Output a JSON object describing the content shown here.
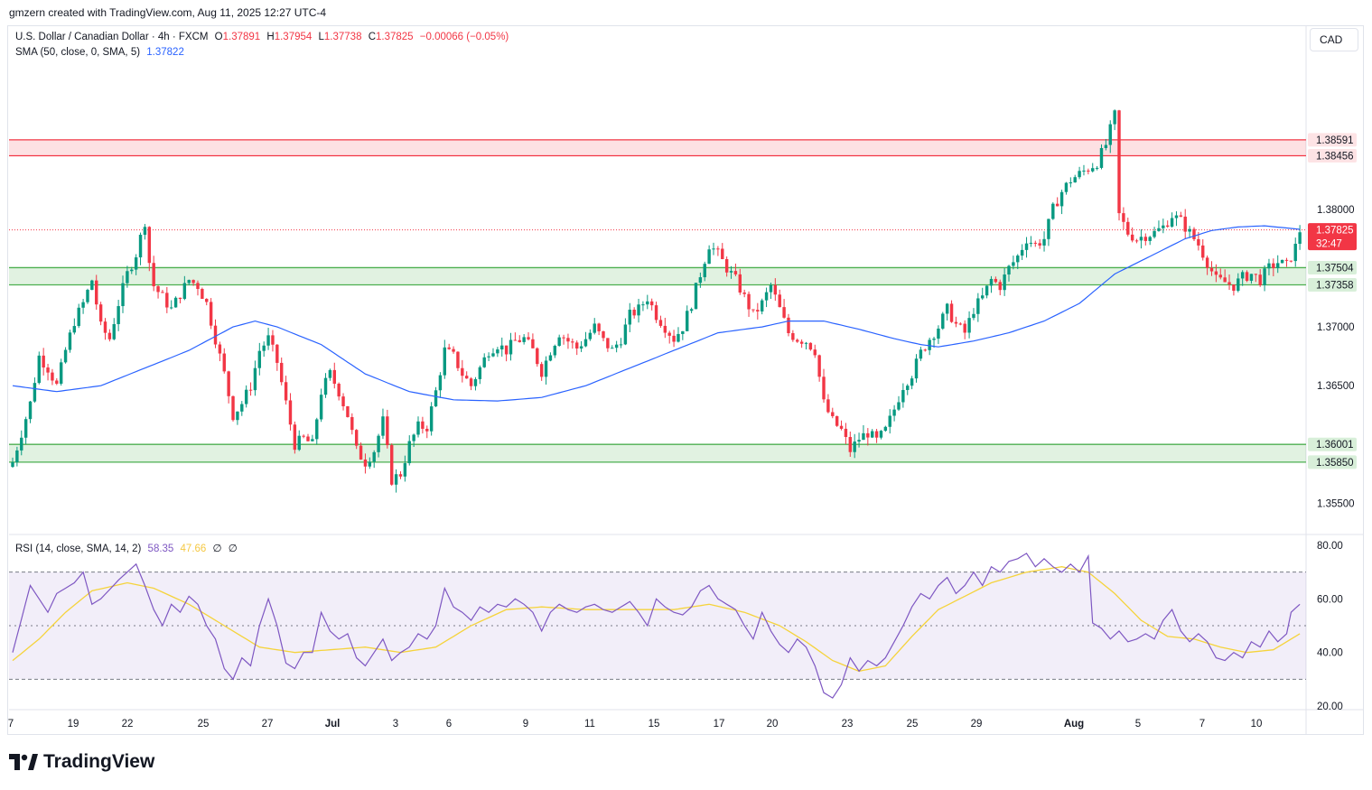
{
  "header": {
    "created_by": "gmzern created with TradingView.com, Aug 11, 2025 12:27 UTC-4"
  },
  "legend": {
    "symbol": "U.S. Dollar / Canadian Dollar · 4h · FXCM",
    "o_label": "O",
    "o_value": "1.37891",
    "h_label": "H",
    "h_value": "1.37954",
    "l_label": "L",
    "l_value": "1.37738",
    "c_label": "C",
    "c_value": "1.37825",
    "change": "−0.00066 (−0.05%)",
    "sma_label": "SMA (50, close, 0, SMA, 5)",
    "sma_value": "1.37822",
    "rsi_label": "RSI (14, close, SMA, 14, 2)",
    "rsi_value": "58.35",
    "rsi_ma_value": "47.66",
    "rsi_extra1": "∅",
    "rsi_extra2": "∅"
  },
  "currency_button": "CAD",
  "logo_text": "TradingView",
  "colors": {
    "up": "#089981",
    "down": "#f23645",
    "sma": "#2962ff",
    "rsi": "#7e57c2",
    "rsi_ma": "#f5d33b",
    "resistance_zone": "#f23645",
    "support_zone": "#4caf50"
  },
  "chart_data": {
    "type": "candlestick",
    "title": "U.S. Dollar / Canadian Dollar · 4h · FXCM",
    "ylim": [
      1.3525,
      1.3955
    ],
    "y_ticks": [
      "1.35500",
      "1.36500",
      "1.37000",
      "1.38000"
    ],
    "x_tick_labels": [
      "7",
      "19",
      "22",
      "25",
      "27",
      "Jul",
      "3",
      "6",
      "9",
      "11",
      "15",
      "17",
      "20",
      "23",
      "25",
      "29",
      "Aug",
      "5",
      "7",
      "10"
    ],
    "price_labels": {
      "resistance_top": "1.38591",
      "resistance_bottom": "1.38456",
      "current_price": "1.37825",
      "countdown": "32:47",
      "support1_top": "1.37504",
      "support1_bottom": "1.37358",
      "support2_top": "1.36001",
      "support2_bottom": "1.35850"
    },
    "zones": [
      {
        "name": "resistance",
        "low": 1.38456,
        "high": 1.38591
      },
      {
        "name": "support-upper",
        "low": 1.37358,
        "high": 1.37504
      },
      {
        "name": "support-lower",
        "low": 1.3585,
        "high": 1.36001
      }
    ],
    "current_price": 1.37825,
    "close_path": [
      [
        0,
        1.3585
      ],
      [
        4,
        1.3635
      ],
      [
        6,
        1.3675
      ],
      [
        8,
        1.3665
      ],
      [
        10,
        1.365
      ],
      [
        12,
        1.368
      ],
      [
        14,
        1.3705
      ],
      [
        16,
        1.372
      ],
      [
        18,
        1.374
      ],
      [
        20,
        1.37
      ],
      [
        22,
        1.369
      ],
      [
        24,
        1.372
      ],
      [
        26,
        1.3745
      ],
      [
        28,
        1.3762
      ],
      [
        30,
        1.379
      ],
      [
        31,
        1.3755
      ],
      [
        32,
        1.3735
      ],
      [
        34,
        1.3725
      ],
      [
        36,
        1.3715
      ],
      [
        38,
        1.3728
      ],
      [
        40,
        1.374
      ],
      [
        42,
        1.3735
      ],
      [
        44,
        1.372
      ],
      [
        46,
        1.369
      ],
      [
        48,
        1.366
      ],
      [
        50,
        1.3625
      ],
      [
        52,
        1.3635
      ],
      [
        54,
        1.365
      ],
      [
        56,
        1.368
      ],
      [
        58,
        1.369
      ],
      [
        60,
        1.367
      ],
      [
        62,
        1.3635
      ],
      [
        64,
        1.36
      ],
      [
        66,
        1.3605
      ],
      [
        68,
        1.36
      ],
      [
        70,
        1.3645
      ],
      [
        72,
        1.366
      ],
      [
        74,
        1.3645
      ],
      [
        76,
        1.3625
      ],
      [
        78,
        1.3595
      ],
      [
        80,
        1.3585
      ],
      [
        82,
        1.3595
      ],
      [
        84,
        1.362
      ],
      [
        86,
        1.357
      ],
      [
        88,
        1.3575
      ],
      [
        90,
        1.36
      ],
      [
        92,
        1.3615
      ],
      [
        94,
        1.3615
      ],
      [
        96,
        1.3645
      ],
      [
        98,
        1.368
      ],
      [
        100,
        1.3675
      ],
      [
        102,
        1.366
      ],
      [
        104,
        1.365
      ],
      [
        106,
        1.3665
      ],
      [
        108,
        1.368
      ],
      [
        110,
        1.3685
      ],
      [
        112,
        1.368
      ],
      [
        114,
        1.3688
      ],
      [
        116,
        1.369
      ],
      [
        118,
        1.368
      ],
      [
        120,
        1.3662
      ],
      [
        122,
        1.368
      ],
      [
        124,
        1.3695
      ],
      [
        126,
        1.3688
      ],
      [
        128,
        1.3682
      ],
      [
        130,
        1.369
      ],
      [
        132,
        1.37
      ],
      [
        134,
        1.3688
      ],
      [
        136,
        1.368
      ],
      [
        138,
        1.369
      ],
      [
        140,
        1.371
      ],
      [
        142,
        1.3715
      ],
      [
        144,
        1.3725
      ],
      [
        146,
        1.371
      ],
      [
        148,
        1.37
      ],
      [
        150,
        1.369
      ],
      [
        152,
        1.37
      ],
      [
        154,
        1.372
      ],
      [
        156,
        1.3745
      ],
      [
        158,
        1.377
      ],
      [
        160,
        1.3762
      ],
      [
        162,
        1.375
      ],
      [
        164,
        1.374
      ],
      [
        166,
        1.3725
      ],
      [
        168,
        1.371
      ],
      [
        170,
        1.372
      ],
      [
        172,
        1.3735
      ],
      [
        174,
        1.3715
      ],
      [
        176,
        1.3695
      ],
      [
        178,
        1.369
      ],
      [
        180,
        1.3688
      ],
      [
        182,
        1.368
      ],
      [
        184,
        1.3635
      ],
      [
        186,
        1.362
      ],
      [
        188,
        1.3612
      ],
      [
        190,
        1.3595
      ],
      [
        192,
        1.3605
      ],
      [
        194,
        1.361
      ],
      [
        196,
        1.3603
      ],
      [
        198,
        1.3612
      ],
      [
        200,
        1.363
      ],
      [
        202,
        1.365
      ],
      [
        204,
        1.366
      ],
      [
        206,
        1.3678
      ],
      [
        208,
        1.369
      ],
      [
        210,
        1.37
      ],
      [
        212,
        1.3715
      ],
      [
        214,
        1.3702
      ],
      [
        216,
        1.3695
      ],
      [
        218,
        1.3715
      ],
      [
        220,
        1.3725
      ],
      [
        222,
        1.374
      ],
      [
        224,
        1.3735
      ],
      [
        226,
        1.375
      ],
      [
        228,
        1.376
      ],
      [
        230,
        1.3775
      ],
      [
        232,
        1.377
      ],
      [
        234,
        1.3775
      ],
      [
        236,
        1.38
      ],
      [
        238,
        1.3815
      ],
      [
        240,
        1.3825
      ],
      [
        242,
        1.383
      ],
      [
        244,
        1.3835
      ],
      [
        246,
        1.384
      ],
      [
        248,
        1.3855
      ],
      [
        250,
        1.388
      ],
      [
        251,
        1.3795
      ],
      [
        253,
        1.378
      ],
      [
        255,
        1.3775
      ],
      [
        257,
        1.3778
      ],
      [
        259,
        1.378
      ],
      [
        261,
        1.3785
      ],
      [
        263,
        1.3795
      ],
      [
        265,
        1.379
      ],
      [
        267,
        1.378
      ],
      [
        269,
        1.377
      ],
      [
        271,
        1.3755
      ],
      [
        273,
        1.374
      ],
      [
        275,
        1.3738
      ],
      [
        277,
        1.3735
      ],
      [
        279,
        1.3742
      ],
      [
        281,
        1.3745
      ],
      [
        283,
        1.374
      ],
      [
        285,
        1.375
      ],
      [
        287,
        1.3755
      ],
      [
        289,
        1.3752
      ],
      [
        291,
        1.3768
      ],
      [
        292,
        1.3782
      ]
    ],
    "sma50_path": [
      [
        0,
        1.365
      ],
      [
        10,
        1.3645
      ],
      [
        20,
        1.365
      ],
      [
        30,
        1.3665
      ],
      [
        40,
        1.368
      ],
      [
        50,
        1.37
      ],
      [
        55,
        1.3705
      ],
      [
        60,
        1.37
      ],
      [
        70,
        1.3685
      ],
      [
        80,
        1.366
      ],
      [
        90,
        1.3645
      ],
      [
        100,
        1.3638
      ],
      [
        110,
        1.3637
      ],
      [
        120,
        1.364
      ],
      [
        130,
        1.365
      ],
      [
        140,
        1.3665
      ],
      [
        150,
        1.368
      ],
      [
        160,
        1.3695
      ],
      [
        170,
        1.37
      ],
      [
        176,
        1.3705
      ],
      [
        184,
        1.3705
      ],
      [
        192,
        1.3698
      ],
      [
        200,
        1.369
      ],
      [
        206,
        1.3685
      ],
      [
        210,
        1.3683
      ],
      [
        218,
        1.3688
      ],
      [
        226,
        1.3695
      ],
      [
        234,
        1.3705
      ],
      [
        242,
        1.372
      ],
      [
        250,
        1.3745
      ],
      [
        258,
        1.376
      ],
      [
        266,
        1.3775
      ],
      [
        272,
        1.3782
      ],
      [
        278,
        1.3785
      ],
      [
        284,
        1.3786
      ],
      [
        292,
        1.3783
      ]
    ],
    "rsi": {
      "ylim": [
        20,
        80
      ],
      "y_ticks": [
        "20.00",
        "40.00",
        "60.00",
        "80.00"
      ],
      "levels": [
        70,
        50,
        30
      ],
      "rsi_path": [
        [
          0,
          40
        ],
        [
          4,
          65
        ],
        [
          8,
          55
        ],
        [
          10,
          62
        ],
        [
          14,
          66
        ],
        [
          16,
          70
        ],
        [
          18,
          58
        ],
        [
          20,
          60
        ],
        [
          24,
          67
        ],
        [
          26,
          70
        ],
        [
          28,
          73
        ],
        [
          30,
          65
        ],
        [
          32,
          56
        ],
        [
          34,
          50
        ],
        [
          36,
          58
        ],
        [
          38,
          55
        ],
        [
          40,
          61
        ],
        [
          42,
          58
        ],
        [
          44,
          50
        ],
        [
          46,
          45
        ],
        [
          48,
          34
        ],
        [
          50,
          30
        ],
        [
          52,
          38
        ],
        [
          54,
          35
        ],
        [
          56,
          50
        ],
        [
          58,
          60
        ],
        [
          60,
          50
        ],
        [
          62,
          36
        ],
        [
          64,
          34
        ],
        [
          66,
          40
        ],
        [
          68,
          40
        ],
        [
          70,
          55
        ],
        [
          72,
          48
        ],
        [
          74,
          45
        ],
        [
          76,
          47
        ],
        [
          78,
          38
        ],
        [
          80,
          35
        ],
        [
          82,
          40
        ],
        [
          84,
          45
        ],
        [
          86,
          37
        ],
        [
          88,
          40
        ],
        [
          90,
          42
        ],
        [
          92,
          47
        ],
        [
          94,
          45
        ],
        [
          96,
          50
        ],
        [
          98,
          64
        ],
        [
          100,
          57
        ],
        [
          102,
          55
        ],
        [
          104,
          52
        ],
        [
          106,
          57
        ],
        [
          108,
          55
        ],
        [
          110,
          58
        ],
        [
          112,
          57
        ],
        [
          114,
          60
        ],
        [
          116,
          58
        ],
        [
          118,
          55
        ],
        [
          120,
          48
        ],
        [
          122,
          55
        ],
        [
          124,
          58
        ],
        [
          126,
          56
        ],
        [
          128,
          55
        ],
        [
          130,
          57
        ],
        [
          132,
          58
        ],
        [
          134,
          56
        ],
        [
          136,
          55
        ],
        [
          138,
          57
        ],
        [
          140,
          59
        ],
        [
          142,
          55
        ],
        [
          144,
          50
        ],
        [
          146,
          60
        ],
        [
          148,
          57
        ],
        [
          150,
          55
        ],
        [
          152,
          54
        ],
        [
          154,
          57
        ],
        [
          156,
          63
        ],
        [
          158,
          65
        ],
        [
          160,
          60
        ],
        [
          162,
          58
        ],
        [
          164,
          56
        ],
        [
          166,
          50
        ],
        [
          168,
          45
        ],
        [
          170,
          55
        ],
        [
          172,
          48
        ],
        [
          174,
          43
        ],
        [
          176,
          40
        ],
        [
          178,
          45
        ],
        [
          180,
          42
        ],
        [
          182,
          35
        ],
        [
          184,
          25
        ],
        [
          186,
          23
        ],
        [
          188,
          28
        ],
        [
          190,
          38
        ],
        [
          192,
          33
        ],
        [
          194,
          37
        ],
        [
          196,
          35
        ],
        [
          198,
          38
        ],
        [
          200,
          44
        ],
        [
          202,
          50
        ],
        [
          204,
          57
        ],
        [
          206,
          62
        ],
        [
          208,
          60
        ],
        [
          210,
          65
        ],
        [
          212,
          68
        ],
        [
          214,
          62
        ],
        [
          216,
          65
        ],
        [
          218,
          70
        ],
        [
          220,
          65
        ],
        [
          222,
          72
        ],
        [
          224,
          70
        ],
        [
          226,
          74
        ],
        [
          228,
          75
        ],
        [
          230,
          77
        ],
        [
          232,
          72
        ],
        [
          234,
          75
        ],
        [
          236,
          72
        ],
        [
          238,
          70
        ],
        [
          240,
          73
        ],
        [
          242,
          70
        ],
        [
          244,
          76
        ],
        [
          245,
          51
        ],
        [
          247,
          49
        ],
        [
          249,
          45
        ],
        [
          251,
          48
        ],
        [
          253,
          44
        ],
        [
          255,
          45
        ],
        [
          257,
          47
        ],
        [
          259,
          45
        ],
        [
          261,
          52
        ],
        [
          263,
          56
        ],
        [
          265,
          48
        ],
        [
          267,
          44
        ],
        [
          269,
          47
        ],
        [
          271,
          44
        ],
        [
          273,
          38
        ],
        [
          275,
          37
        ],
        [
          277,
          40
        ],
        [
          279,
          38
        ],
        [
          281,
          44
        ],
        [
          283,
          42
        ],
        [
          285,
          48
        ],
        [
          287,
          44
        ],
        [
          289,
          47
        ],
        [
          290,
          55
        ],
        [
          292,
          58
        ]
      ],
      "ma_path": [
        [
          0,
          37
        ],
        [
          6,
          45
        ],
        [
          12,
          55
        ],
        [
          18,
          63
        ],
        [
          26,
          66
        ],
        [
          32,
          64
        ],
        [
          40,
          58
        ],
        [
          48,
          50
        ],
        [
          56,
          42
        ],
        [
          64,
          40
        ],
        [
          72,
          41
        ],
        [
          80,
          42
        ],
        [
          88,
          40
        ],
        [
          96,
          42
        ],
        [
          104,
          50
        ],
        [
          112,
          56
        ],
        [
          120,
          57
        ],
        [
          130,
          56
        ],
        [
          140,
          56
        ],
        [
          150,
          56
        ],
        [
          158,
          58
        ],
        [
          166,
          55
        ],
        [
          174,
          50
        ],
        [
          180,
          44
        ],
        [
          186,
          37
        ],
        [
          192,
          33
        ],
        [
          198,
          35
        ],
        [
          204,
          46
        ],
        [
          210,
          56
        ],
        [
          216,
          61
        ],
        [
          222,
          66
        ],
        [
          230,
          70
        ],
        [
          238,
          72
        ],
        [
          244,
          70
        ],
        [
          250,
          62
        ],
        [
          256,
          52
        ],
        [
          262,
          46
        ],
        [
          268,
          45
        ],
        [
          274,
          42
        ],
        [
          280,
          40
        ],
        [
          286,
          41
        ],
        [
          292,
          47
        ]
      ]
    }
  }
}
